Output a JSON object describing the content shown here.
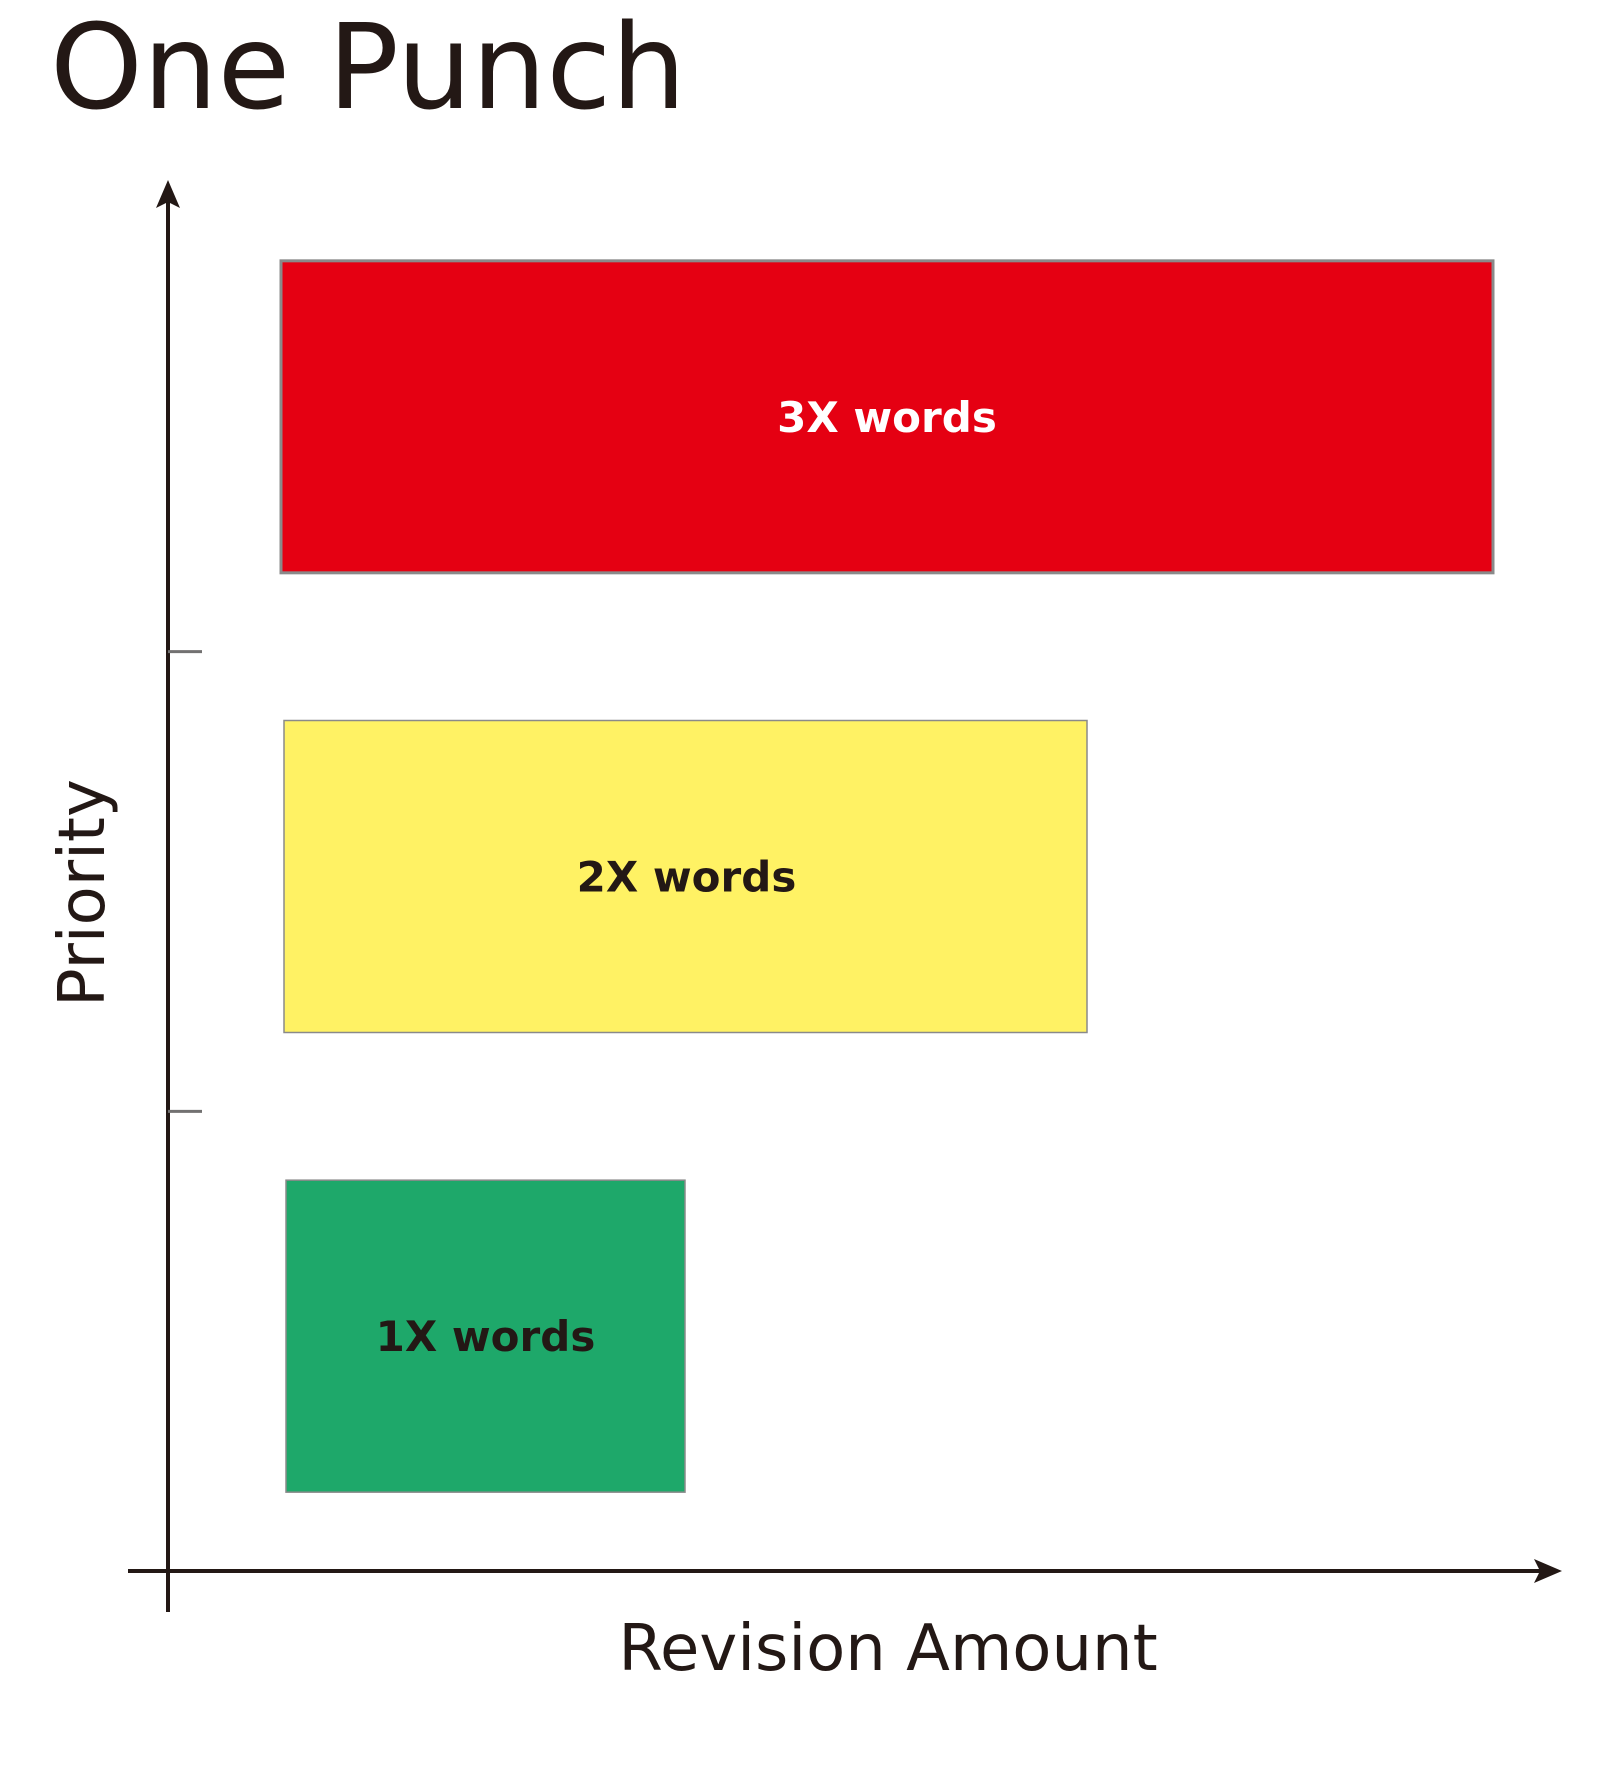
{
  "chart_data": {
    "type": "bar",
    "orientation": "horizontal",
    "title": "One Punch",
    "xlabel": "Revision Amount",
    "ylabel": "Priority",
    "categories": [
      "3X words",
      "2X words",
      "1X words"
    ],
    "values": [
      3,
      2,
      1
    ],
    "xlim": [
      0,
      3.27
    ],
    "grid": false,
    "legend": "none",
    "bar_colors": [
      "#e50012",
      "#fff264",
      "#1ea86a"
    ],
    "label_colors": [
      "#ffffff",
      "#231815",
      "#231815"
    ]
  },
  "colors": {
    "axis": "#231815",
    "tick": "#727171",
    "bar_border": "#8a8a8a"
  }
}
